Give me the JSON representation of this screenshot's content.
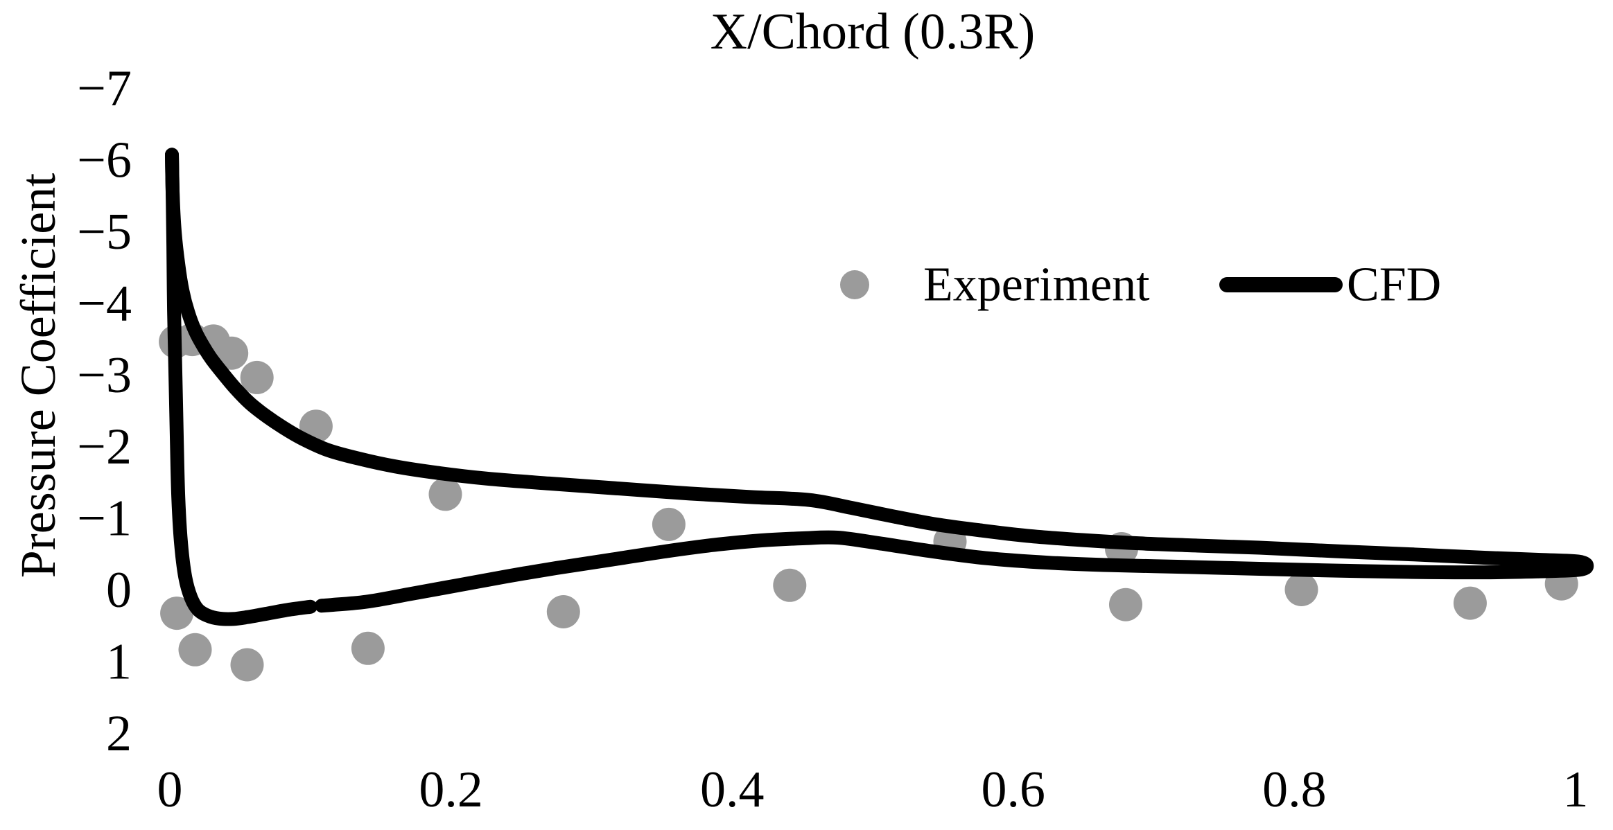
{
  "chart_data": {
    "type": "scatter",
    "title": "X/Chord (0.3R)",
    "xlabel": "",
    "ylabel": "Pressure Coefficient",
    "grid": false,
    "y_axis": {
      "min": -7,
      "max": 2,
      "inverted": true,
      "ticks": [
        {
          "v": -7,
          "label": "−7"
        },
        {
          "v": -6,
          "label": "−6"
        },
        {
          "v": -5,
          "label": "−5"
        },
        {
          "v": -4,
          "label": "−4"
        },
        {
          "v": -3,
          "label": "−3"
        },
        {
          "v": -2,
          "label": "−2"
        },
        {
          "v": -1,
          "label": "−1"
        },
        {
          "v": 0,
          "label": "0"
        },
        {
          "v": 1,
          "label": "1"
        },
        {
          "v": 2,
          "label": "2"
        }
      ]
    },
    "x_axis": {
      "min": 0,
      "max": 1,
      "ticks": [
        {
          "v": 0,
          "label": "0"
        },
        {
          "v": 0.2,
          "label": "0.2"
        },
        {
          "v": 0.4,
          "label": "0.4"
        },
        {
          "v": 0.6,
          "label": "0.6"
        },
        {
          "v": 0.8,
          "label": "0.8"
        },
        {
          "v": 1,
          "label": "1"
        }
      ]
    },
    "series": [
      {
        "name": "Experiment",
        "type": "scatter",
        "color": "#9b9b9b",
        "marker_diameter_px": 48,
        "points": [
          [
            0.004,
            -3.47
          ],
          [
            0.016,
            -3.5
          ],
          [
            0.031,
            -3.48
          ],
          [
            0.044,
            -3.31
          ],
          [
            0.062,
            -2.97
          ],
          [
            0.104,
            -2.29
          ],
          [
            0.196,
            -1.34
          ],
          [
            0.355,
            -0.92
          ],
          [
            0.441,
            -0.07
          ],
          [
            0.555,
            -0.68
          ],
          [
            0.677,
            -0.58
          ],
          [
            0.805,
            -0.01
          ],
          [
            0.925,
            0.18
          ],
          [
            0.99,
            -0.09
          ],
          [
            0.005,
            0.32
          ],
          [
            0.018,
            0.83
          ],
          [
            0.055,
            1.04
          ],
          [
            0.141,
            0.81
          ],
          [
            0.28,
            0.3
          ],
          [
            0.68,
            0.2
          ]
        ]
      },
      {
        "name": "CFD",
        "type": "line",
        "color": "#000000",
        "stroke_px": 20,
        "leading_edge_peak": [
          0.002,
          -6.1
        ],
        "trailing_edge": [
          1.0,
          -0.34
        ],
        "path_upper_te_lower": [
          [
            0.0015,
            -6.08
          ],
          [
            0.002,
            -5.55
          ],
          [
            0.0035,
            -5.0
          ],
          [
            0.006,
            -4.55
          ],
          [
            0.009,
            -4.18
          ],
          [
            0.013,
            -3.88
          ],
          [
            0.018,
            -3.62
          ],
          [
            0.024,
            -3.4
          ],
          [
            0.03,
            -3.22
          ],
          [
            0.038,
            -3.02
          ],
          [
            0.047,
            -2.81
          ],
          [
            0.057,
            -2.61
          ],
          [
            0.068,
            -2.44
          ],
          [
            0.08,
            -2.28
          ],
          [
            0.094,
            -2.12
          ],
          [
            0.112,
            -1.96
          ],
          [
            0.134,
            -1.84
          ],
          [
            0.16,
            -1.73
          ],
          [
            0.19,
            -1.64
          ],
          [
            0.225,
            -1.56
          ],
          [
            0.27,
            -1.49
          ],
          [
            0.32,
            -1.42
          ],
          [
            0.37,
            -1.35
          ],
          [
            0.415,
            -1.3
          ],
          [
            0.455,
            -1.26
          ],
          [
            0.485,
            -1.15
          ],
          [
            0.515,
            -1.03
          ],
          [
            0.545,
            -0.92
          ],
          [
            0.575,
            -0.84
          ],
          [
            0.61,
            -0.76
          ],
          [
            0.65,
            -0.7
          ],
          [
            0.69,
            -0.655
          ],
          [
            0.73,
            -0.625
          ],
          [
            0.775,
            -0.595
          ],
          [
            0.83,
            -0.545
          ],
          [
            0.885,
            -0.5
          ],
          [
            0.935,
            -0.455
          ],
          [
            0.975,
            -0.425
          ],
          [
            1.002,
            -0.4
          ],
          [
            1.008,
            -0.34
          ],
          [
            1.002,
            -0.285
          ],
          [
            0.975,
            -0.265
          ],
          [
            0.935,
            -0.25
          ],
          [
            0.885,
            -0.255
          ],
          [
            0.83,
            -0.275
          ],
          [
            0.775,
            -0.3
          ],
          [
            0.725,
            -0.325
          ],
          [
            0.67,
            -0.35
          ],
          [
            0.625,
            -0.385
          ],
          [
            0.58,
            -0.45
          ],
          [
            0.54,
            -0.55
          ],
          [
            0.505,
            -0.655
          ],
          [
            0.475,
            -0.735
          ],
          [
            0.45,
            -0.725
          ],
          [
            0.42,
            -0.695
          ],
          [
            0.39,
            -0.64
          ],
          [
            0.355,
            -0.55
          ],
          [
            0.315,
            -0.43
          ],
          [
            0.275,
            -0.31
          ],
          [
            0.24,
            -0.195
          ],
          [
            0.205,
            -0.07
          ],
          [
            0.17,
            0.055
          ],
          [
            0.14,
            0.16
          ],
          [
            0.115,
            0.205
          ],
          [
            0.108,
            0.215
          ]
        ],
        "path_lower_le": [
          [
            0.1,
            0.23
          ],
          [
            0.085,
            0.27
          ],
          [
            0.068,
            0.33
          ],
          [
            0.055,
            0.375
          ],
          [
            0.045,
            0.4
          ],
          [
            0.035,
            0.395
          ],
          [
            0.027,
            0.355
          ],
          [
            0.02,
            0.27
          ],
          [
            0.015,
            0.1
          ],
          [
            0.011,
            -0.18
          ],
          [
            0.008,
            -0.65
          ],
          [
            0.006,
            -1.3
          ],
          [
            0.005,
            -2.1
          ],
          [
            0.004,
            -3.0
          ],
          [
            0.003,
            -3.9
          ],
          [
            0.0025,
            -4.8
          ],
          [
            0.002,
            -5.5
          ],
          [
            0.0015,
            -6.08
          ]
        ]
      }
    ],
    "legend": {
      "position": "upper-center-right",
      "items": [
        {
          "label": "Experiment",
          "swatch": "circle-marker",
          "color": "#9b9b9b"
        },
        {
          "label": "CFD",
          "swatch": "line",
          "color": "#000000"
        }
      ]
    }
  }
}
